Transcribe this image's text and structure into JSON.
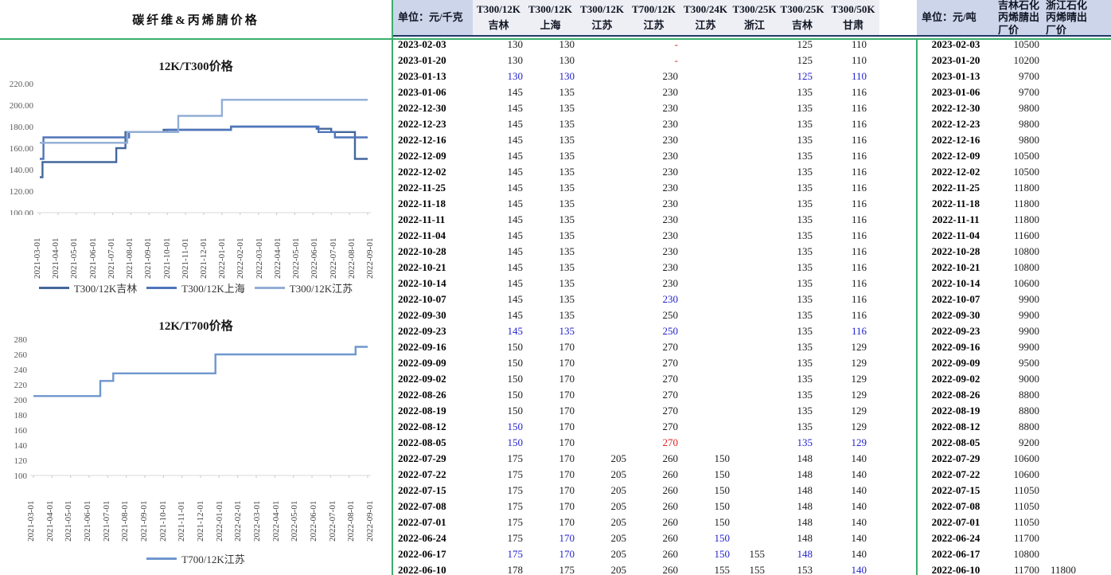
{
  "left": {
    "title": "碳纤维&丙烯腈价格"
  },
  "colors": {
    "accent_green": "#3bae6d",
    "header_rule_navy": "#1f3864",
    "header_bg_blue": "#ccd5ea",
    "header_bg_light": "#edeff4",
    "value_text_blue": "#2222cc",
    "value_text_red": "#e02020",
    "series_jilin": "#44679b",
    "series_shanghai": "#4f74ba",
    "series_jiangsu": "#92aed5",
    "series_t700": "#6f97ce"
  },
  "chart_data": [
    {
      "type": "line",
      "title": "12K/T300价格",
      "ylim": [
        100,
        220
      ],
      "ytick_step": 20,
      "y_format": "2dp",
      "grid": "baseline-only",
      "legend_position": "bottom",
      "x_labels": [
        "2021-03-01",
        "2021-04-01",
        "2021-05-01",
        "2021-06-01",
        "2021-07-01",
        "2021-08-01",
        "2021-09-01",
        "2021-10-01",
        "2021-11-01",
        "2021-12-01",
        "2022-01-01",
        "2022-02-01",
        "2022-03-01",
        "2022-04-01",
        "2022-05-01",
        "2022-06-01",
        "2022-07-01",
        "2022-08-01",
        "2022-09-01"
      ],
      "series": [
        {
          "name": "T300/12K吉林",
          "color": "#44679b",
          "x": [
            0,
            0.15,
            4.2,
            4.7,
            6.8,
            10.5,
            15.2,
            16.0,
            17.3,
            18
          ],
          "y": [
            133,
            147,
            160,
            175,
            177,
            180,
            178,
            175,
            150,
            150
          ]
        },
        {
          "name": "T300/12K上海",
          "color": "#4f74ba",
          "x": [
            0,
            0.2,
            4.9,
            7.0,
            10.5,
            15.3,
            16.2,
            18
          ],
          "y": [
            150,
            170,
            175,
            177,
            180,
            175,
            170,
            170
          ]
        },
        {
          "name": "T300/12K江苏",
          "color": "#92aed5",
          "x": [
            0,
            4.8,
            7.6,
            10.0,
            18
          ],
          "y": [
            165,
            175,
            190,
            205,
            205
          ]
        }
      ]
    },
    {
      "type": "line",
      "title": "12K/T700价格",
      "ylim": [
        100,
        280
      ],
      "ytick_step": 20,
      "y_format": "int",
      "grid": "baseline-only",
      "legend_position": "bottom",
      "x_labels": [
        "2021-03-01",
        "2021-04-01",
        "2021-05-01",
        "2021-06-01",
        "2021-07-01",
        "2021-08-01",
        "2021-09-01",
        "2021-10-01",
        "2021-11-01",
        "2021-12-01",
        "2022-01-01",
        "2022-02-01",
        "2022-03-01",
        "2022-04-01",
        "2022-05-01",
        "2022-06-01",
        "2022-07-01",
        "2022-08-01",
        "2022-09-01"
      ],
      "series": [
        {
          "name": "T700/12K江苏",
          "color": "#6f97ce",
          "x": [
            0,
            3.6,
            4.3,
            9.8,
            17.35,
            18
          ],
          "y": [
            205,
            225,
            235,
            260,
            270,
            270
          ]
        }
      ]
    }
  ],
  "table": {
    "unit_left": "单位：元/千克",
    "unit_right": "单位：元/吨",
    "columns": [
      {
        "line1": "T300/12K",
        "line2": "吉林"
      },
      {
        "line1": "T300/12K",
        "line2": "上海"
      },
      {
        "line1": "T300/12K",
        "line2": "江苏"
      },
      {
        "line1": "T700/12K",
        "line2": "江苏"
      },
      {
        "line1": "T300/24K",
        "line2": "江苏"
      },
      {
        "line1": "T300/25K",
        "line2": "浙江"
      },
      {
        "line1": "T300/25K",
        "line2": "吉林"
      },
      {
        "line1": "T300/50K",
        "line2": "甘肃"
      }
    ],
    "acn_columns": [
      "吉林石化丙烯腈出厂价",
      "浙江石化丙烯晴出厂价"
    ],
    "value_flags": {
      "|b": "blue text",
      "|r": "red text"
    },
    "rows": [
      {
        "d": "2023-02-03",
        "v": [
          "130",
          "130",
          "",
          "-|r",
          "",
          "",
          "125",
          "110"
        ],
        "a": [
          "10500",
          ""
        ]
      },
      {
        "d": "2023-01-20",
        "v": [
          "130",
          "130",
          "",
          "-|r",
          "",
          "",
          "125",
          "110"
        ],
        "a": [
          "10200",
          ""
        ]
      },
      {
        "d": "2023-01-13",
        "v": [
          "130|b",
          "130|b",
          "",
          "230",
          "",
          "",
          "125|b",
          "110|b"
        ],
        "a": [
          "9700",
          ""
        ]
      },
      {
        "d": "2023-01-06",
        "v": [
          "145",
          "135",
          "",
          "230",
          "",
          "",
          "135",
          "116"
        ],
        "a": [
          "9700",
          ""
        ]
      },
      {
        "d": "2022-12-30",
        "v": [
          "145",
          "135",
          "",
          "230",
          "",
          "",
          "135",
          "116"
        ],
        "a": [
          "9800",
          ""
        ]
      },
      {
        "d": "2022-12-23",
        "v": [
          "145",
          "135",
          "",
          "230",
          "",
          "",
          "135",
          "116"
        ],
        "a": [
          "9800",
          ""
        ]
      },
      {
        "d": "2022-12-16",
        "v": [
          "145",
          "135",
          "",
          "230",
          "",
          "",
          "135",
          "116"
        ],
        "a": [
          "9800",
          ""
        ]
      },
      {
        "d": "2022-12-09",
        "v": [
          "145",
          "135",
          "",
          "230",
          "",
          "",
          "135",
          "116"
        ],
        "a": [
          "10500",
          ""
        ]
      },
      {
        "d": "2022-12-02",
        "v": [
          "145",
          "135",
          "",
          "230",
          "",
          "",
          "135",
          "116"
        ],
        "a": [
          "10500",
          ""
        ]
      },
      {
        "d": "2022-11-25",
        "v": [
          "145",
          "135",
          "",
          "230",
          "",
          "",
          "135",
          "116"
        ],
        "a": [
          "11800",
          ""
        ]
      },
      {
        "d": "2022-11-18",
        "v": [
          "145",
          "135",
          "",
          "230",
          "",
          "",
          "135",
          "116"
        ],
        "a": [
          "11800",
          ""
        ]
      },
      {
        "d": "2022-11-11",
        "v": [
          "145",
          "135",
          "",
          "230",
          "",
          "",
          "135",
          "116"
        ],
        "a": [
          "11800",
          ""
        ]
      },
      {
        "d": "2022-11-04",
        "v": [
          "145",
          "135",
          "",
          "230",
          "",
          "",
          "135",
          "116"
        ],
        "a": [
          "11600",
          ""
        ]
      },
      {
        "d": "2022-10-28",
        "v": [
          "145",
          "135",
          "",
          "230",
          "",
          "",
          "135",
          "116"
        ],
        "a": [
          "10800",
          ""
        ]
      },
      {
        "d": "2022-10-21",
        "v": [
          "145",
          "135",
          "",
          "230",
          "",
          "",
          "135",
          "116"
        ],
        "a": [
          "10800",
          ""
        ]
      },
      {
        "d": "2022-10-14",
        "v": [
          "145",
          "135",
          "",
          "230",
          "",
          "",
          "135",
          "116"
        ],
        "a": [
          "10600",
          ""
        ]
      },
      {
        "d": "2022-10-07",
        "v": [
          "145",
          "135",
          "",
          "230|b",
          "",
          "",
          "135",
          "116"
        ],
        "a": [
          "9900",
          ""
        ]
      },
      {
        "d": "2022-09-30",
        "v": [
          "145",
          "135",
          "",
          "250",
          "",
          "",
          "135",
          "116"
        ],
        "a": [
          "9900",
          ""
        ]
      },
      {
        "d": "2022-09-23",
        "v": [
          "145|b",
          "135|b",
          "",
          "250|b",
          "",
          "",
          "135",
          "116|b"
        ],
        "a": [
          "9900",
          ""
        ]
      },
      {
        "d": "2022-09-16",
        "v": [
          "150",
          "170",
          "",
          "270",
          "",
          "",
          "135",
          "129"
        ],
        "a": [
          "9900",
          ""
        ]
      },
      {
        "d": "2022-09-09",
        "v": [
          "150",
          "170",
          "",
          "270",
          "",
          "",
          "135",
          "129"
        ],
        "a": [
          "9500",
          ""
        ]
      },
      {
        "d": "2022-09-02",
        "v": [
          "150",
          "170",
          "",
          "270",
          "",
          "",
          "135",
          "129"
        ],
        "a": [
          "9000",
          ""
        ]
      },
      {
        "d": "2022-08-26",
        "v": [
          "150",
          "170",
          "",
          "270",
          "",
          "",
          "135",
          "129"
        ],
        "a": [
          "8800",
          ""
        ]
      },
      {
        "d": "2022-08-19",
        "v": [
          "150",
          "170",
          "",
          "270",
          "",
          "",
          "135",
          "129"
        ],
        "a": [
          "8800",
          ""
        ]
      },
      {
        "d": "2022-08-12",
        "v": [
          "150|b",
          "170",
          "",
          "270",
          "",
          "",
          "135",
          "129"
        ],
        "a": [
          "8800",
          ""
        ]
      },
      {
        "d": "2022-08-05",
        "v": [
          "150|b",
          "170",
          "",
          "270|r",
          "",
          "",
          "135|b",
          "129|b"
        ],
        "a": [
          "9200",
          ""
        ]
      },
      {
        "d": "2022-07-29",
        "v": [
          "175",
          "170",
          "205",
          "260",
          "150",
          "",
          "148",
          "140"
        ],
        "a": [
          "10600",
          ""
        ]
      },
      {
        "d": "2022-07-22",
        "v": [
          "175",
          "170",
          "205",
          "260",
          "150",
          "",
          "148",
          "140"
        ],
        "a": [
          "10600",
          ""
        ]
      },
      {
        "d": "2022-07-15",
        "v": [
          "175",
          "170",
          "205",
          "260",
          "150",
          "",
          "148",
          "140"
        ],
        "a": [
          "11050",
          ""
        ]
      },
      {
        "d": "2022-07-08",
        "v": [
          "175",
          "170",
          "205",
          "260",
          "150",
          "",
          "148",
          "140"
        ],
        "a": [
          "11050",
          ""
        ]
      },
      {
        "d": "2022-07-01",
        "v": [
          "175",
          "170",
          "205",
          "260",
          "150",
          "",
          "148",
          "140"
        ],
        "a": [
          "11050",
          ""
        ]
      },
      {
        "d": "2022-06-24",
        "v": [
          "175",
          "170|b",
          "205",
          "260",
          "150|b",
          "",
          "148",
          "140"
        ],
        "a": [
          "11700",
          ""
        ]
      },
      {
        "d": "2022-06-17",
        "v": [
          "175|b",
          "170|b",
          "205",
          "260",
          "150|b",
          "155",
          "148|b",
          "140"
        ],
        "a": [
          "10800",
          ""
        ]
      },
      {
        "d": "2022-06-10",
        "v": [
          "178",
          "175",
          "205",
          "260",
          "155",
          "155",
          "153",
          "140|b"
        ],
        "a": [
          "11700",
          "11800"
        ]
      }
    ]
  }
}
